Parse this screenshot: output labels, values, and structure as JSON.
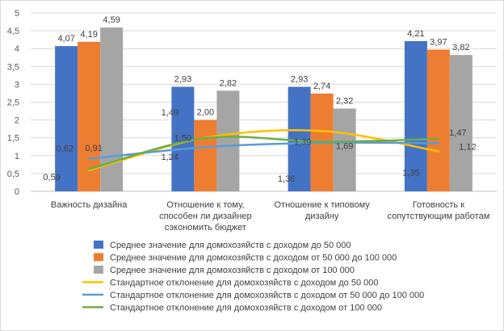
{
  "chart_data": {
    "type": "bar",
    "title": "",
    "xlabel": "",
    "ylabel": "",
    "ylim": [
      0,
      5
    ],
    "y_ticks": [
      "0",
      "0,5",
      "1",
      "1,5",
      "2",
      "2,5",
      "3",
      "3,5",
      "4",
      "4,5",
      "5"
    ],
    "grid": true,
    "legend_position": "bottom",
    "categories": [
      [
        "Важность дизайна"
      ],
      [
        "Отношение к тому,",
        "способен ли дизайнер",
        "сэкономить бюджет"
      ],
      [
        "Отношение к типовому",
        "дизайну"
      ],
      [
        "Готовность к",
        "сопутствующим работам"
      ]
    ],
    "series": [
      {
        "name": "Среднее значение для домохозяйств с доходом до 50 000",
        "kind": "bar",
        "color": "#4472C4",
        "values": [
          4.07,
          2.93,
          2.93,
          4.21
        ],
        "labels": [
          "4,07",
          "2,93",
          "2,93",
          "4,21"
        ]
      },
      {
        "name": "Среднее значение для домохозяйств с доходом от 50 000 до 100 000",
        "kind": "bar",
        "color": "#ED7D31",
        "values": [
          4.19,
          2.0,
          2.74,
          3.97
        ],
        "labels": [
          "4,19",
          "2,00",
          "2,74",
          "3,97"
        ]
      },
      {
        "name": "Среднее значение для домохозяйств с доходом от 100 000",
        "kind": "bar",
        "color": "#A5A5A5",
        "values": [
          4.59,
          2.82,
          2.32,
          3.82
        ],
        "labels": [
          "4,59",
          "2,82",
          "2,32",
          "3,82"
        ]
      },
      {
        "name": "Стандартное отклонение для  домохозяйств с доходом до 50 000",
        "kind": "line",
        "color": "#FFC000",
        "values": [
          0.59,
          1.5,
          1.69,
          1.12
        ],
        "labels": [
          "0,59",
          "1,50",
          "1,69",
          "1,12"
        ]
      },
      {
        "name": "Стандартное отклонение для  домохозяйств с доходом от 50 000 до 100 000",
        "kind": "line",
        "color": "#5B9BD5",
        "values": [
          0.91,
          1.24,
          1.36,
          1.35
        ],
        "labels": [
          "0,91",
          "1,24",
          "1,36",
          "1,35"
        ]
      },
      {
        "name": "Стандартное отклонение для  домохозяйств с доходом от 100 000",
        "kind": "line",
        "color": "#70AD47",
        "values": [
          0.62,
          1.49,
          1.39,
          1.47
        ],
        "labels": [
          "0,62",
          "1,49",
          "1,39",
          "1,47"
        ]
      }
    ]
  }
}
